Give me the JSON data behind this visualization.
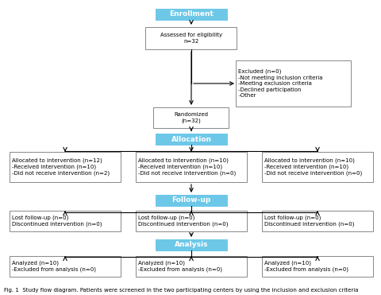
{
  "title": "Fig. 1  Study flow diagram. Patients were screened in the two participating centers by using the inclusion and exclusion criteria",
  "enrollment_label": "Enrollment",
  "allocation_label": "Allocation",
  "followup_label": "Follow-up",
  "analysis_label": "Analysis",
  "box_eligibility": "Assessed for eligibility\nn=32",
  "box_randomized": "Randomized\n(n=32)",
  "box_excluded": "Excluded (n=0)\n-Not meeting inclusion criteria\n-Meeting exclusion criteria\n-Declined participation\n-Other",
  "box_alloc1": "Allocated to intervention (n=12)\n-Received intervention (n=10)\n-Did not receive intervention (n=2)",
  "box_alloc2": "Allocated to intervention (n=10)\n-Received intervention (n=10)\n-Did not receive intervention (n=0)",
  "box_alloc3": "Allocated to intervention (n=10)\n-Received intervention (n=10)\n-Did not receive intervention (n=0)",
  "box_fu1": "Lost follow-up (n=0)\nDiscontinued intervention (n=0)",
  "box_fu2": "Lost follow-up (n=0)\nDiscontinued intervention (n=0)",
  "box_fu3": "Lost follow-up (n=0)\nDiscontinued intervention (n=0)",
  "box_an1": "Analyzed (n=10)\n-Excluded from analysis (n=0)",
  "box_an2": "Analyzed (n=10)\n-Excluded from analysis (n=0)",
  "box_an3": "Analyzed (n=10)\n-Excluded from analysis (n=0)",
  "header_color": "#6dc8e8",
  "box_bg": "#ffffff",
  "box_border": "#888888",
  "font_size_header": 6.5,
  "font_size_box": 5.0,
  "font_size_caption": 5.0
}
